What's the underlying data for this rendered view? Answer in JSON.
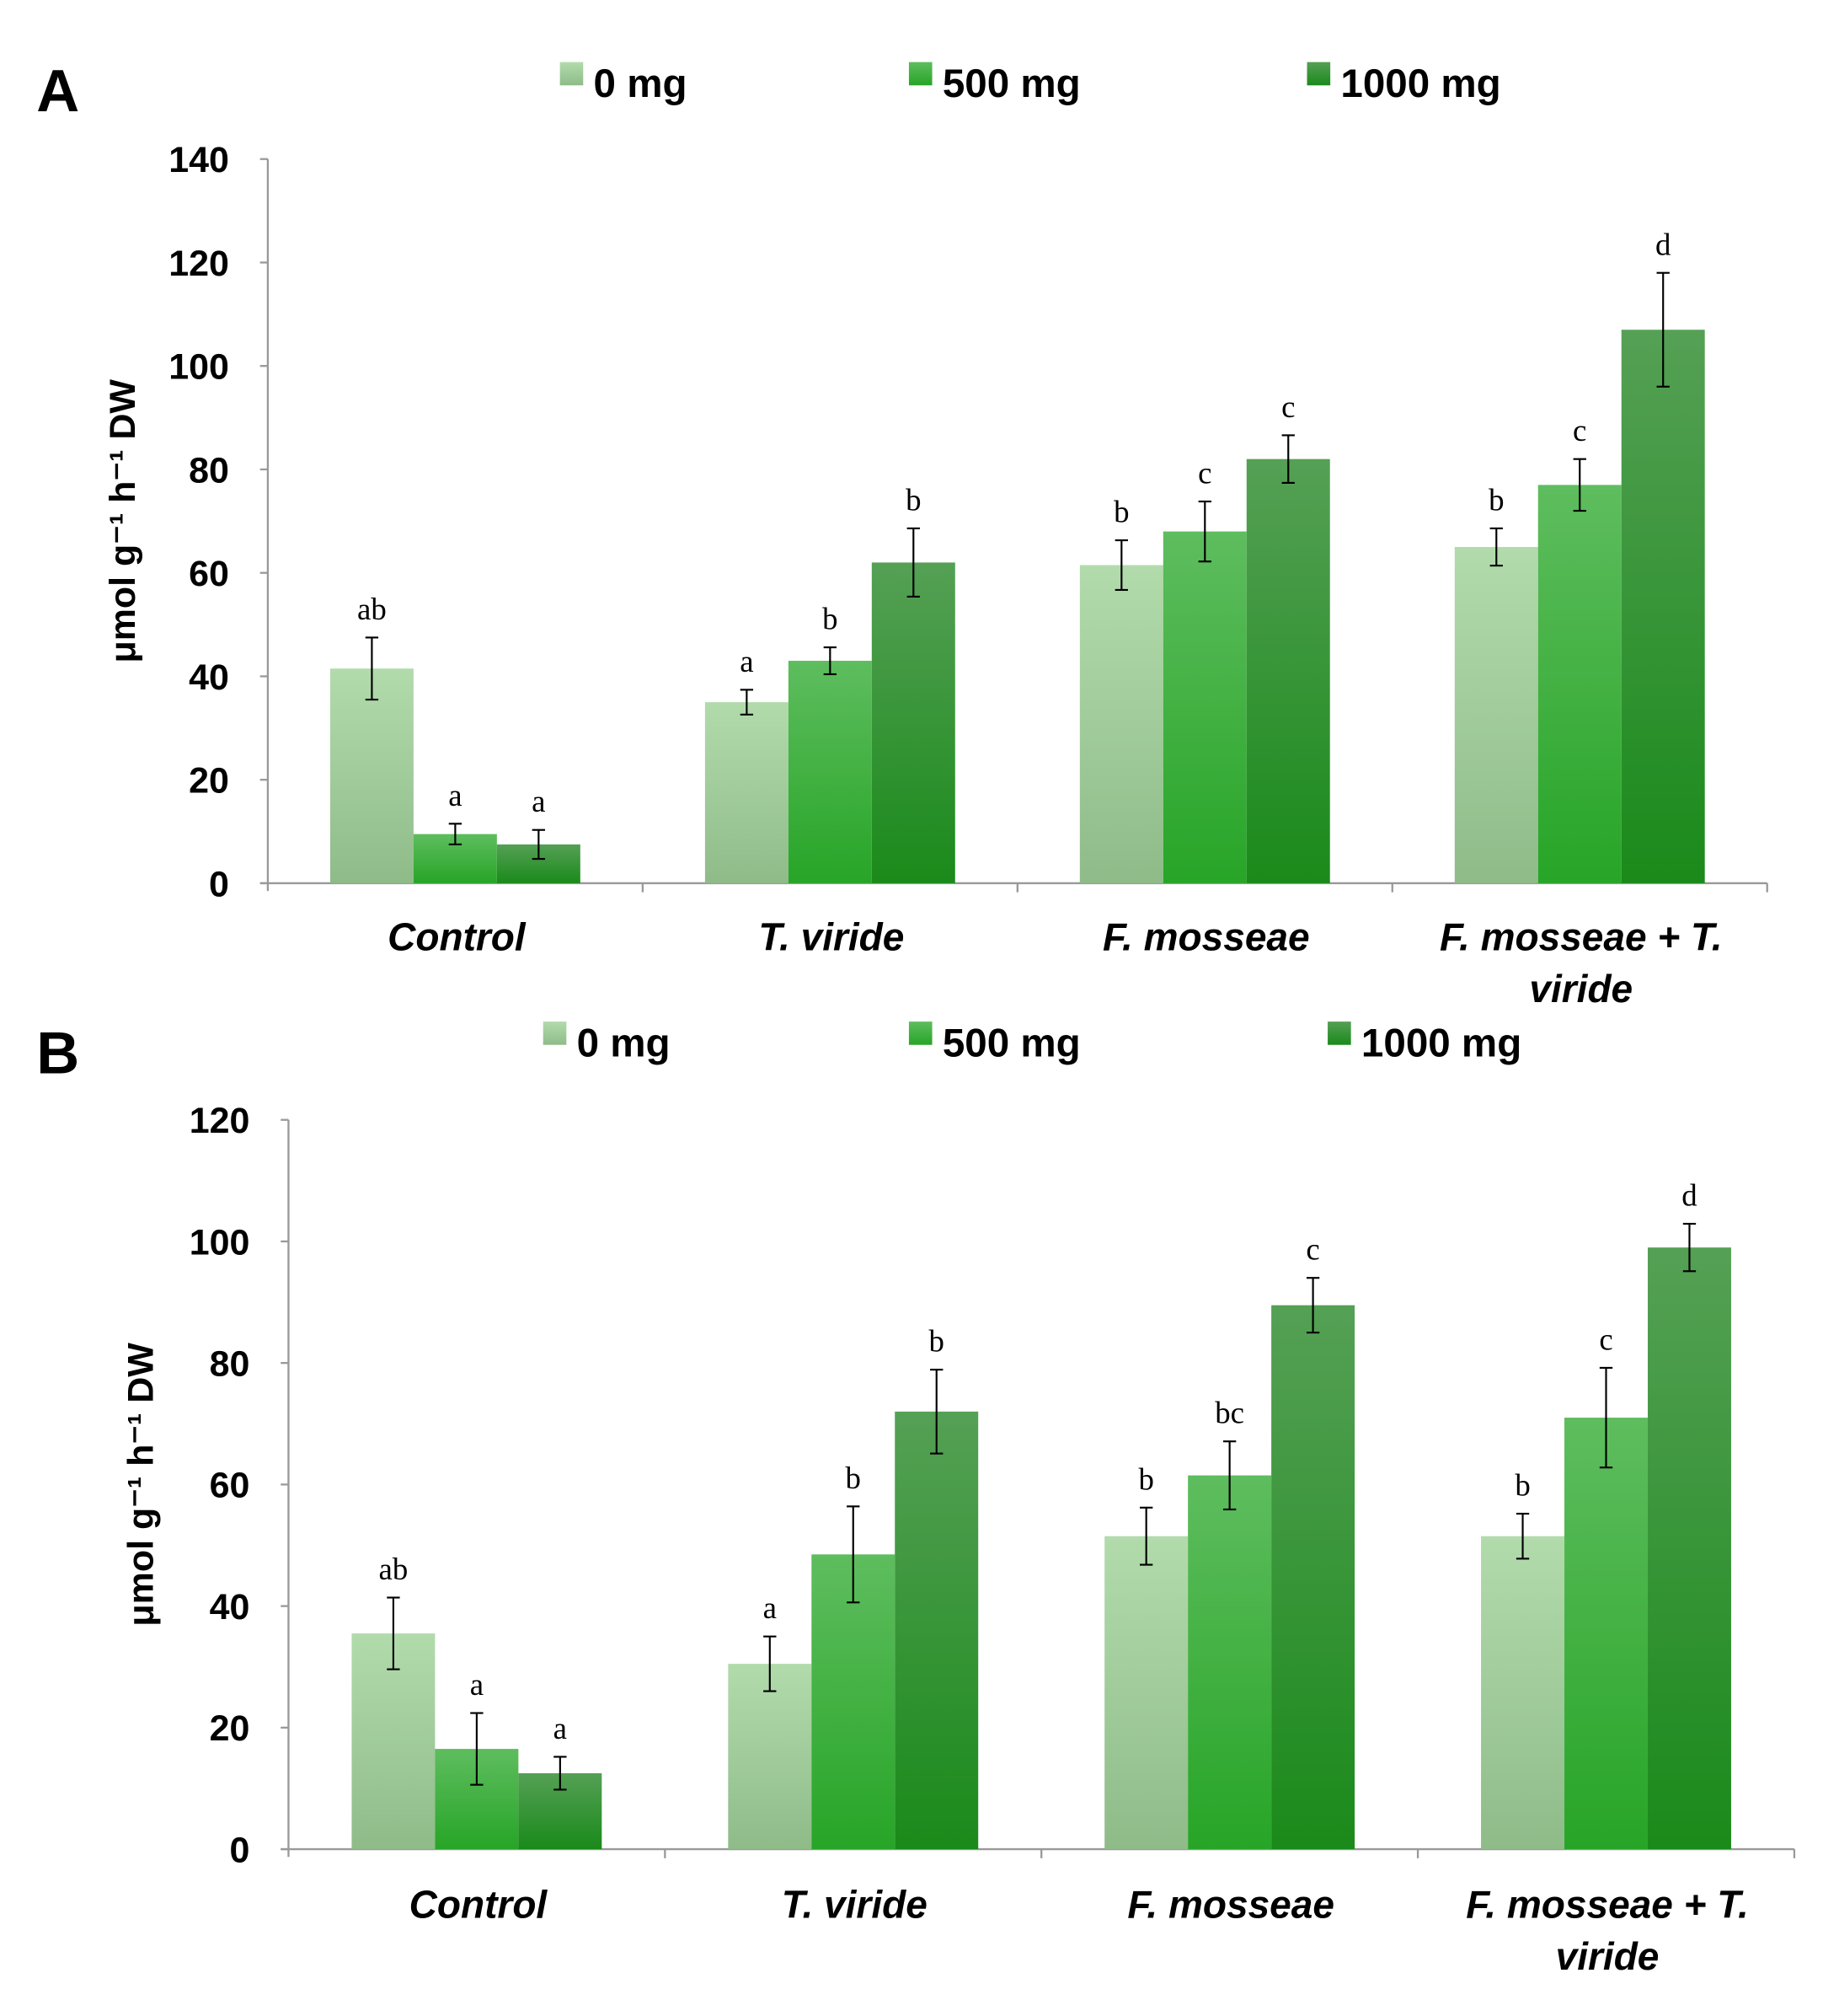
{
  "chart_data": [
    {
      "type": "bar",
      "panel_label": "A",
      "ylabel": "μmol g⁻¹ h⁻¹ DW",
      "ylim": [
        0,
        140
      ],
      "yticks": [
        0,
        20,
        40,
        60,
        80,
        100,
        120,
        140
      ],
      "categories": [
        "Control",
        "T. viride",
        "F. mosseae",
        "F. mosseae + T. viride"
      ],
      "legend_position": "top",
      "series": [
        {
          "name": "0 mg",
          "color": "#a6d3a0",
          "values": [
            41.5,
            35,
            61.5,
            65
          ],
          "errors": [
            6,
            2.4,
            4.8,
            3.6
          ],
          "letters": [
            "ab",
            "a",
            "b",
            "b"
          ]
        },
        {
          "name": "500 mg",
          "color": "#3cb43c",
          "values": [
            9.5,
            43,
            68,
            77
          ],
          "errors": [
            2,
            2.6,
            5.8,
            5
          ],
          "letters": [
            "a",
            "b",
            "c",
            "c"
          ]
        },
        {
          "name": "1000 mg",
          "color": "#2a8f2a",
          "values": [
            7.5,
            62,
            82,
            107
          ],
          "errors": [
            2.8,
            6.6,
            4.6,
            11
          ],
          "letters": [
            "a",
            "b",
            "c",
            "d"
          ]
        }
      ]
    },
    {
      "type": "bar",
      "panel_label": "B",
      "ylabel": "μmol g⁻¹ h⁻¹ DW",
      "ylim": [
        0,
        120
      ],
      "yticks": [
        0,
        20,
        40,
        60,
        80,
        100,
        120
      ],
      "categories": [
        "Control",
        "T. viride",
        "F. mosseae",
        "F. mosseae + T. viride"
      ],
      "legend_position": "top",
      "series": [
        {
          "name": "0 mg",
          "color": "#a6d3a0",
          "values": [
            35.5,
            30.5,
            51.5,
            51.5
          ],
          "errors": [
            5.9,
            4.5,
            4.7,
            3.7
          ],
          "letters": [
            "ab",
            "a",
            "b",
            "b"
          ]
        },
        {
          "name": "500 mg",
          "color": "#3cb43c",
          "values": [
            16.5,
            48.5,
            61.5,
            71
          ],
          "errors": [
            5.9,
            7.9,
            5.6,
            8.2
          ],
          "letters": [
            "a",
            "b",
            "bc",
            "c"
          ]
        },
        {
          "name": "1000 mg",
          "color": "#2a8f2a",
          "values": [
            12.5,
            72,
            89.5,
            99
          ],
          "errors": [
            2.7,
            6.9,
            4.5,
            3.9
          ],
          "letters": [
            "a",
            "b",
            "c",
            "d"
          ]
        }
      ]
    }
  ]
}
